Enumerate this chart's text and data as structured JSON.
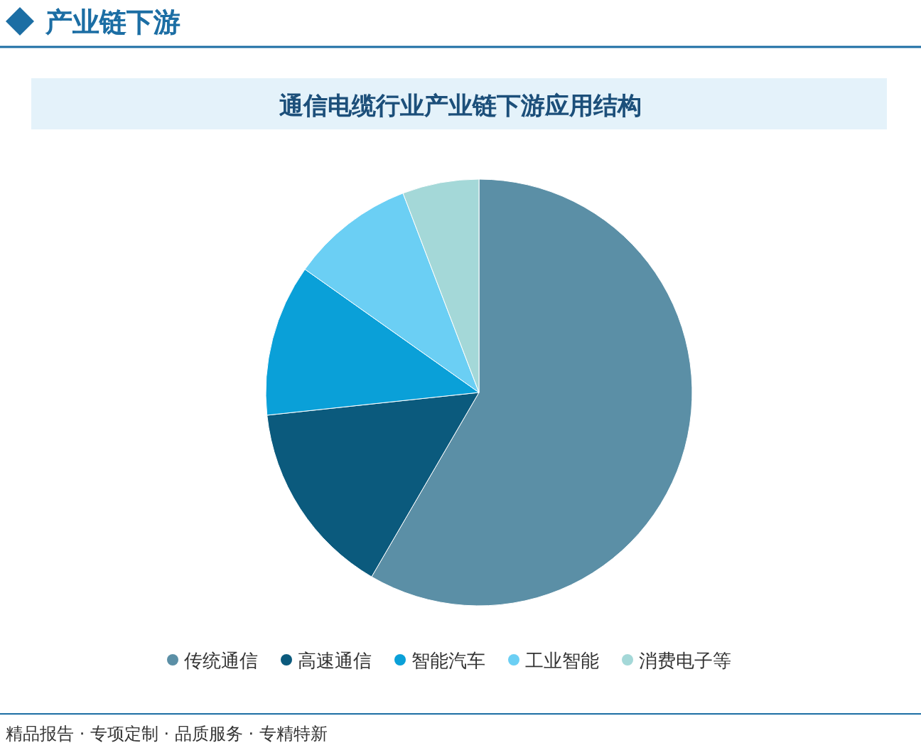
{
  "chart_data": {
    "type": "pie",
    "title": "通信电缆行业产业链下游应用结构",
    "categories": [
      "传统通信",
      "高速通信",
      "智能汽车",
      "工业智能",
      "消费电子等"
    ],
    "values": [
      58.4,
      14.9,
      11.5,
      9.4,
      5.8
    ],
    "colors": [
      "#5b8fa6",
      "#0b5a7d",
      "#0aa0d8",
      "#6bcff4",
      "#a4d8d8"
    ],
    "legend": "bottom",
    "annotations": [
      "产业链下游",
      "精品报告 · 专项定制 · 品质服务 · 专精特新"
    ]
  }
}
